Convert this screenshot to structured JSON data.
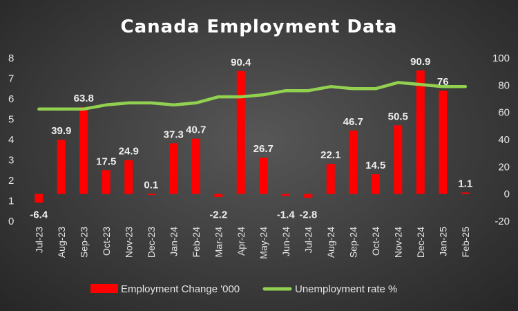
{
  "chart_data": {
    "type": "bar",
    "title": "Canada Employment Data",
    "categories": [
      "Jul-23",
      "Aug-23",
      "Sep-23",
      "Oct-23",
      "Nov-23",
      "Dec-23",
      "Jan-24",
      "Feb-24",
      "Mar-24",
      "Apr-24",
      "May-24",
      "Jun-24",
      "Jul-24",
      "Aug-24",
      "Sep-24",
      "Oct-24",
      "Nov-24",
      "Dec-24",
      "Jan-25",
      "Feb-25"
    ],
    "series": [
      {
        "name": "Employment Change '000",
        "type": "bar",
        "axis": "right",
        "color": "#ff0000",
        "values": [
          -6.4,
          39.9,
          63.8,
          17.5,
          24.9,
          0.1,
          37.3,
          40.7,
          -2.2,
          90.4,
          26.7,
          -1.4,
          -2.8,
          22.1,
          46.7,
          14.5,
          50.5,
          90.9,
          76,
          1.1
        ],
        "labels": [
          "-6.4",
          "39.9",
          "63.8",
          "17.5",
          "24.9",
          "0.1",
          "37.3",
          "40.7",
          "-2.2",
          "90.4",
          "26.7",
          "-1.4",
          "-2.8",
          "22.1",
          "46.7",
          "14.5",
          "50.5",
          "90.9",
          "76",
          "1.1"
        ]
      },
      {
        "name": "Unemployment rate %",
        "type": "line",
        "axis": "left",
        "color": "#92d050",
        "values": [
          5.5,
          5.5,
          5.5,
          5.7,
          5.8,
          5.8,
          5.7,
          5.8,
          6.1,
          6.1,
          6.2,
          6.4,
          6.4,
          6.6,
          6.5,
          6.5,
          6.8,
          6.7,
          6.6,
          6.6
        ]
      }
    ],
    "left_axis": {
      "ylim": [
        0,
        8
      ],
      "ticks": [
        "0",
        "1",
        "2",
        "3",
        "4",
        "5",
        "6",
        "7",
        "8"
      ]
    },
    "right_axis": {
      "ylim": [
        -20,
        100
      ],
      "ticks": [
        "-20",
        "0",
        "20",
        "40",
        "60",
        "80",
        "100"
      ]
    },
    "legend_position": "bottom",
    "grid": false,
    "xlabel": "",
    "ylabel": ""
  }
}
